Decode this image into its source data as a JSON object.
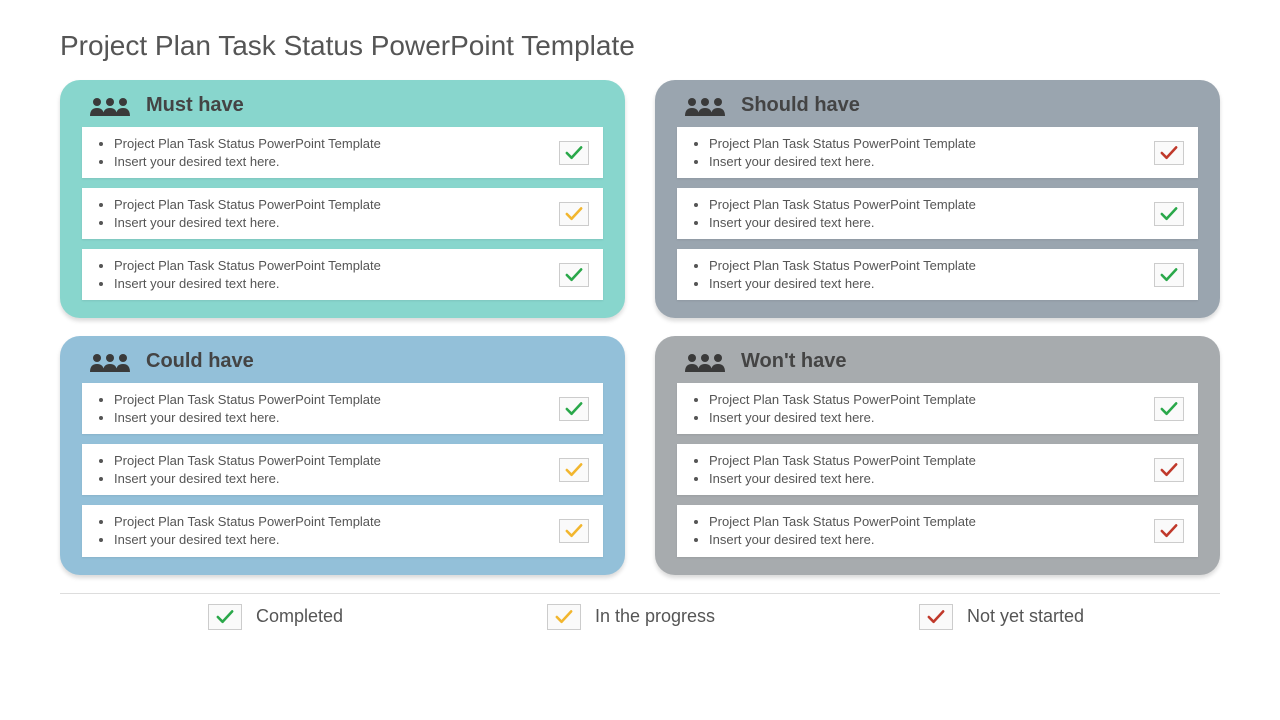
{
  "title": "Project Plan Task Status PowerPoint Template",
  "status_colors": {
    "completed": "#2aa84a",
    "in_progress": "#f2b62e",
    "not_started": "#c0392b"
  },
  "panels": [
    {
      "title": "Must have",
      "bg": "#88d6cd",
      "tasks": [
        {
          "line1": "Project Plan Task Status PowerPoint Template",
          "line2": "Insert your desired text here.",
          "status": "completed"
        },
        {
          "line1": "Project Plan Task Status PowerPoint Template",
          "line2": "Insert your desired text here.",
          "status": "in_progress"
        },
        {
          "line1": "Project Plan Task Status PowerPoint Template",
          "line2": "Insert your desired text here.",
          "status": "completed"
        }
      ]
    },
    {
      "title": "Should have",
      "bg": "#9aa5af",
      "tasks": [
        {
          "line1": "Project Plan Task Status PowerPoint Template",
          "line2": "Insert your desired text here.",
          "status": "not_started"
        },
        {
          "line1": "Project Plan Task Status PowerPoint Template",
          "line2": "Insert your desired text here.",
          "status": "completed"
        },
        {
          "line1": "Project Plan Task Status PowerPoint Template",
          "line2": "Insert your desired text here.",
          "status": "completed"
        }
      ]
    },
    {
      "title": "Could have",
      "bg": "#93c0d9",
      "tasks": [
        {
          "line1": "Project Plan Task Status PowerPoint Template",
          "line2": "Insert your desired text here.",
          "status": "completed"
        },
        {
          "line1": "Project Plan Task Status PowerPoint Template",
          "line2": "Insert your desired text here.",
          "status": "in_progress"
        },
        {
          "line1": "Project Plan Task Status PowerPoint Template",
          "line2": "Insert your desired text here.",
          "status": "in_progress"
        }
      ]
    },
    {
      "title": "Won't have",
      "bg": "#a7abae",
      "tasks": [
        {
          "line1": "Project Plan Task Status PowerPoint Template",
          "line2": "Insert your desired text here.",
          "status": "completed"
        },
        {
          "line1": "Project Plan Task Status PowerPoint Template",
          "line2": "Insert your desired text here.",
          "status": "not_started"
        },
        {
          "line1": "Project Plan Task Status PowerPoint Template",
          "line2": "Insert your desired text here.",
          "status": "not_started"
        }
      ]
    }
  ],
  "legend": [
    {
      "label": "Completed",
      "status": "completed"
    },
    {
      "label": "In the progress",
      "status": "in_progress"
    },
    {
      "label": "Not yet started",
      "status": "not_started"
    }
  ]
}
